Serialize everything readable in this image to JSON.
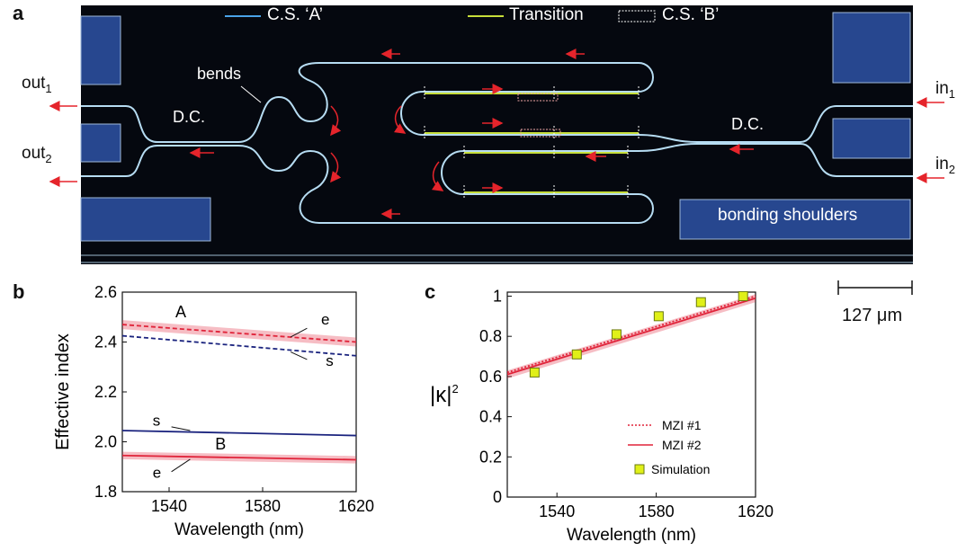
{
  "panel_a": {
    "letter": "a",
    "legend": {
      "cs_a": "C.S. ‘A’",
      "transition": "Transition",
      "cs_b": "C.S. ‘B’"
    },
    "labels": {
      "bends": "bends",
      "dc_left": "D.C.",
      "dc_right": "D.C.",
      "bonding": "bonding shoulders",
      "out1_base": "out",
      "out1_sub": "1",
      "out2_base": "out",
      "out2_sub": "2",
      "in1_base": "in",
      "in1_sub": "1",
      "in2_base": "in",
      "in2_sub": "2"
    },
    "scale_bar": "127 μm",
    "colors": {
      "background": "#05080f",
      "waveguide": "#b6dcf2",
      "transition": "#c7de3a",
      "arrow": "#e5242b",
      "pad": "#27478f"
    }
  },
  "chart_data": [
    {
      "panel": "b",
      "type": "line",
      "xlabel": "Wavelength (nm)",
      "ylabel": "Effective index",
      "xlim": [
        1520,
        1620
      ],
      "ylim": [
        1.8,
        2.6
      ],
      "xticks": [
        "1540",
        "1580",
        "1620"
      ],
      "yticks": [
        "1.8",
        "2.0",
        "2.2",
        "2.4",
        "2.6"
      ],
      "annotations": {
        "A": "A",
        "B": "B",
        "e_top": "e",
        "s_top": "s",
        "s_bottom": "s",
        "e_bottom": "e"
      },
      "series": [
        {
          "x": [
            1520,
            1620
          ],
          "y": [
            2.47,
            2.4
          ],
          "style": "dashed",
          "color": "#e0243a",
          "band": 0.018
        },
        {
          "x": [
            1520,
            1620
          ],
          "y": [
            2.425,
            2.345
          ],
          "style": "dashed",
          "color": "#1a237e"
        },
        {
          "x": [
            1520,
            1620
          ],
          "y": [
            2.045,
            2.025
          ],
          "style": "solid",
          "color": "#1a237e"
        },
        {
          "x": [
            1520,
            1620
          ],
          "y": [
            1.945,
            1.928
          ],
          "style": "solid",
          "color": "#e0243a",
          "band": 0.015
        }
      ]
    },
    {
      "panel": "c",
      "type": "line",
      "xlabel": "Wavelength (nm)",
      "ylabel_base": "|κ|",
      "ylabel_sup": "2",
      "xlim": [
        1520,
        1620
      ],
      "ylim": [
        0,
        1.02
      ],
      "xticks": [
        "1540",
        "1580",
        "1620"
      ],
      "yticks": [
        "0",
        "0.2",
        "0.4",
        "0.6",
        "0.8",
        "1"
      ],
      "legend": {
        "mzi1": "MZI #1",
        "mzi2": "MZI #2",
        "sim": "Simulation"
      },
      "series": [
        {
          "name": "MZI #1",
          "x": [
            1520,
            1620
          ],
          "y": [
            0.62,
            1.0
          ],
          "style": "dotted",
          "color": "#e0243a"
        },
        {
          "name": "MZI #2",
          "x": [
            1520,
            1620
          ],
          "y": [
            0.61,
            0.99
          ],
          "style": "solid",
          "color": "#e0243a",
          "band": 0.02
        },
        {
          "name": "Simulation",
          "type": "scatter",
          "x": [
            1531,
            1548,
            1564,
            1581,
            1598,
            1615
          ],
          "y": [
            0.62,
            0.71,
            0.81,
            0.9,
            0.97,
            1.0
          ],
          "color": "#e0f018"
        }
      ]
    }
  ]
}
